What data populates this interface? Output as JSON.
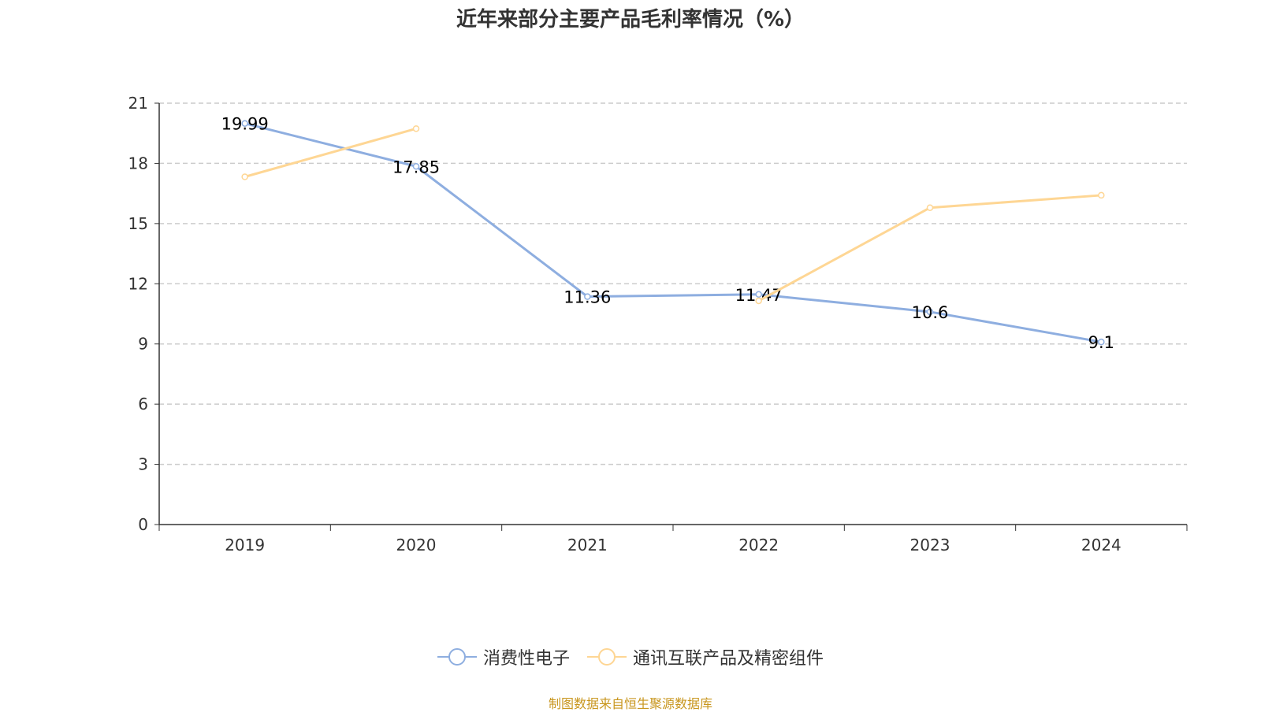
{
  "chart_data": {
    "type": "line",
    "title": "近年来部分主要产品毛利率情况（%）",
    "categories": [
      "2019",
      "2020",
      "2021",
      "2022",
      "2023",
      "2024"
    ],
    "ylim": [
      0,
      21
    ],
    "yticks": [
      0,
      3,
      6,
      9,
      12,
      15,
      18,
      21
    ],
    "grid": true,
    "legend_position": "bottom",
    "series": [
      {
        "name": "消费性电子",
        "color": "#8eaee0",
        "values": [
          19.99,
          17.85,
          11.36,
          11.47,
          10.6,
          9.1
        ],
        "labels": [
          "19.99",
          "17.85",
          "11.36",
          "11.47",
          "10.6",
          "9.1"
        ]
      },
      {
        "name": "通讯互联产品及精密组件",
        "color": "#fed694",
        "values": [
          17.33,
          19.73,
          null,
          11.15,
          15.79,
          16.41
        ]
      }
    ]
  },
  "source": "制图数据来自恒生聚源数据库"
}
